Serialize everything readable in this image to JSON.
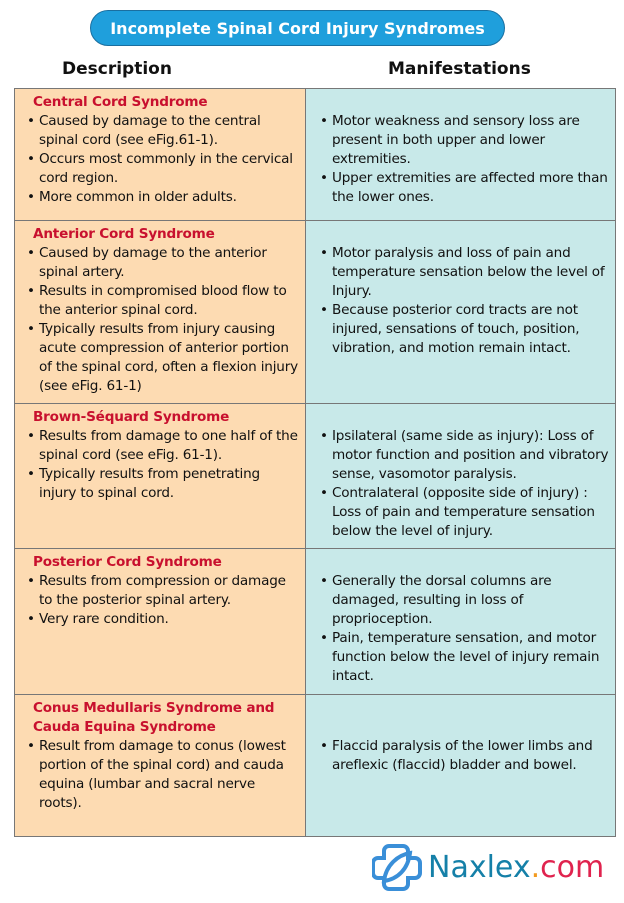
{
  "title": "Incomplete Spinal Cord Injury Syndromes",
  "headers": {
    "description": "Description",
    "manifestations": "Manifestations"
  },
  "rows": [
    {
      "name": "Central Cord Syndrome",
      "description": [
        "Caused by damage to the central spinal cord (see eFig.61-1).",
        "Occurs most commonly in the cervical cord region.",
        "More common in older adults."
      ],
      "manifestations": [
        "Motor weakness and sensory loss are present in both upper and lower extremities.",
        "Upper extremities are affected more than the lower ones."
      ]
    },
    {
      "name": "Anterior Cord Syndrome",
      "description": [
        "Caused by damage to the anterior spinal artery.",
        "Results in compromised blood flow to the anterior spinal cord.",
        "Typically results from injury causing acute compression of anterior portion of the spinal cord, often a flexion injury (see eFig. 61-1)"
      ],
      "manifestations": [
        "Motor paralysis and loss of pain and temperature sensation below the level of Injury.",
        "Because posterior cord tracts are not injured, sensations of touch, position, vibration, and motion remain intact."
      ]
    },
    {
      "name": "Brown-Séquard Syndrome",
      "description": [
        "Results from damage to one half of the spinal cord (see eFig. 61-1).",
        "Typically results from penetrating injury to spinal cord."
      ],
      "manifestations": [
        "Ipsilateral (same side as injury): Loss of motor function and position and vibratory sense, vasomotor paralysis.",
        "Contralateral (opposite side of injury) : Loss of pain and temperature sensation below the level of injury."
      ]
    },
    {
      "name": "Posterior Cord Syndrome",
      "description": [
        "Results from compression or damage to the posterior spinal artery.",
        "Very rare condition."
      ],
      "manifestations": [
        "Generally the dorsal columns are damaged, resulting in loss of proprioception.",
        "Pain, temperature sensation, and motor function below the level of injury remain intact."
      ]
    },
    {
      "name": "Conus Medullaris Syndrome and Cauda Equina Syndrome",
      "description": [
        "Result from damage to conus (lowest portion of the spinal cord) and cauda equina (lumbar and sacral nerve roots)."
      ],
      "manifestations": [
        "Flaccid paralysis of the lower limbs and areflexic (flaccid) bladder and bowel."
      ]
    }
  ],
  "logo": {
    "brand": "Naxlex",
    "dot": ".",
    "tld": "com",
    "colors": {
      "brand": "#1580a8",
      "dot": "#f29a1f",
      "tld": "#e0234e"
    }
  },
  "colors": {
    "title_bg": "#1f9fdc",
    "description_bg": "#fddbb2",
    "manifestations_bg": "#c8e9e9",
    "syndrome_title": "#c8102e"
  }
}
